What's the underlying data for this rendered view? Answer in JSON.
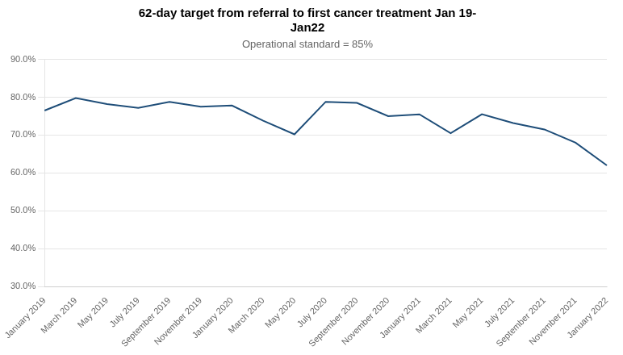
{
  "chart_data": {
    "type": "line",
    "title": "62-day target from referral to first cancer treatment Jan 19-\nJan22",
    "subtitle": "Operational standard = 85%",
    "categories": [
      "January 2019",
      "March 2019",
      "May 2019",
      "July 2019",
      "September 2019",
      "November 2019",
      "January 2020",
      "March 2020",
      "May 2020",
      "July 2020",
      "September 2020",
      "November 2020",
      "January 2021",
      "March 2021",
      "May 2021",
      "July 2021",
      "September 2021",
      "November 2021",
      "January 2022"
    ],
    "values": [
      76.5,
      79.8,
      78.2,
      77.2,
      78.8,
      77.5,
      77.8,
      73.8,
      70.2,
      78.8,
      78.5,
      75.0,
      75.5,
      70.5,
      75.5,
      73.2,
      71.5,
      68.0,
      62.0
    ],
    "color": "#1F4E79",
    "ylim": [
      30.0,
      90.0
    ],
    "yticks": [
      {
        "value": 30.0,
        "label": "30.0%"
      },
      {
        "value": 40.0,
        "label": "40.0%"
      },
      {
        "value": 50.0,
        "label": "50.0%"
      },
      {
        "value": 60.0,
        "label": "60.0%"
      },
      {
        "value": 70.0,
        "label": "70.0%"
      },
      {
        "value": 80.0,
        "label": "80.0%"
      },
      {
        "value": 90.0,
        "label": "90.0%"
      }
    ],
    "grid": "y"
  }
}
